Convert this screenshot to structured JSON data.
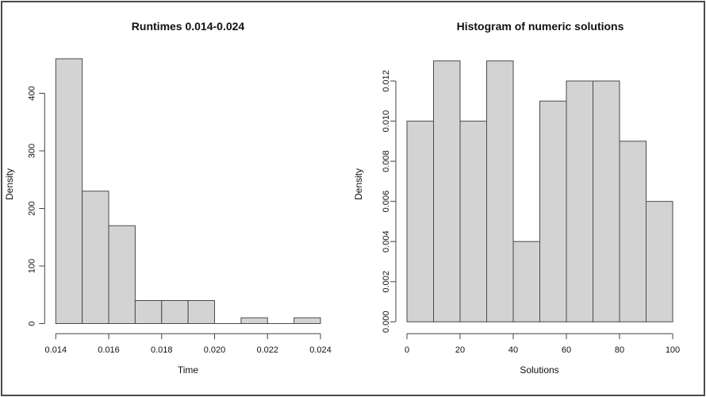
{
  "window": {
    "background_color": "#ffffff",
    "border_color": "#4a4a4a"
  },
  "chart_data": [
    {
      "type": "bar",
      "title": "Runtimes 0.014-0.024",
      "xlabel": "Time",
      "ylabel": "Density",
      "bin_edges": [
        0.014,
        0.015,
        0.016,
        0.017,
        0.018,
        0.019,
        0.02,
        0.021,
        0.022,
        0.023,
        0.024
      ],
      "densities": [
        460,
        230,
        170,
        40,
        40,
        40,
        0,
        10,
        0,
        10
      ],
      "xlim": [
        0.014,
        0.024
      ],
      "ylim": [
        0,
        400
      ],
      "x_ticks": [
        0.014,
        0.016,
        0.018,
        0.02,
        0.022,
        0.024
      ],
      "x_tick_labels": [
        "0.014",
        "0.016",
        "0.018",
        "0.020",
        "0.022",
        "0.024"
      ],
      "y_ticks": [
        0,
        100,
        200,
        300,
        400
      ],
      "y_tick_labels": [
        "0",
        "100",
        "200",
        "300",
        "400"
      ],
      "grid": false,
      "legend": false,
      "bar_fill": "#d3d3d3",
      "bar_stroke": "#4a4a4a",
      "axis_color": "#444444"
    },
    {
      "type": "bar",
      "title": "Histogram of numeric solutions",
      "xlabel": "Solutions",
      "ylabel": "Density",
      "bin_edges": [
        0,
        10,
        20,
        30,
        40,
        50,
        60,
        70,
        80,
        90,
        100
      ],
      "densities": [
        0.01,
        0.013,
        0.01,
        0.013,
        0.004,
        0.011,
        0.012,
        0.012,
        0.009,
        0.006
      ],
      "xlim": [
        0,
        100
      ],
      "ylim": [
        0,
        0.012
      ],
      "x_ticks": [
        0,
        20,
        40,
        60,
        80,
        100
      ],
      "x_tick_labels": [
        "0",
        "20",
        "40",
        "60",
        "80",
        "100"
      ],
      "y_ticks": [
        0,
        0.002,
        0.004,
        0.006,
        0.008,
        0.01,
        0.012
      ],
      "y_tick_labels": [
        "0.000",
        "0.002",
        "0.004",
        "0.006",
        "0.008",
        "0.010",
        "0.012"
      ],
      "grid": false,
      "legend": false,
      "bar_fill": "#d3d3d3",
      "bar_stroke": "#4a4a4a",
      "axis_color": "#444444"
    }
  ]
}
